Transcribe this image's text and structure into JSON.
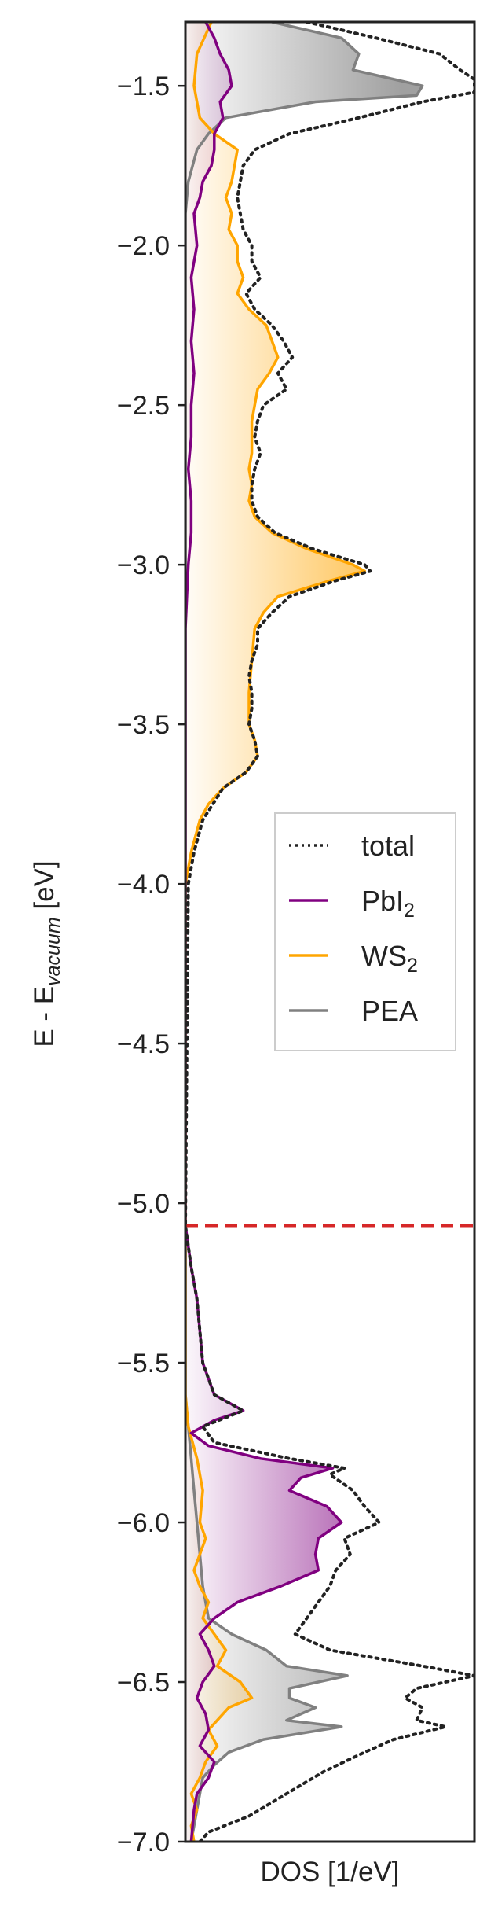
{
  "chart_data": {
    "type": "line",
    "orientation": "horizontal-density",
    "xlabel": "DOS [1/eV]",
    "ylabel_parts": {
      "base": "E - E",
      "sub": "vacuum",
      "unit": " [eV]"
    },
    "ylim": [
      -7.0,
      -1.3
    ],
    "y_ticks": [
      -7.0,
      -6.5,
      -6.0,
      -5.5,
      -5.0,
      -4.5,
      -4.0,
      -3.5,
      -3.0,
      -2.5,
      -2.0,
      -1.5
    ],
    "y_tick_labels": [
      "−7.0",
      "−6.5",
      "−6.0",
      "−5.5",
      "−5.0",
      "−4.5",
      "−4.0",
      "−3.5",
      "−3.0",
      "−2.5",
      "−2.0",
      "−1.5"
    ],
    "xlim": [
      0,
      1
    ],
    "x_ticks_visible": false,
    "grid": false,
    "legend_position": "center-right",
    "fermi_level": {
      "energy": -5.07,
      "color": "#d62728",
      "style": "dashed"
    },
    "series": [
      {
        "key": "total",
        "name": "total",
        "color": "#222222",
        "style": "dotted",
        "fill": false,
        "points": [
          [
            -1.3,
            0.42
          ],
          [
            -1.35,
            0.66
          ],
          [
            -1.4,
            0.88
          ],
          [
            -1.45,
            0.95
          ],
          [
            -1.48,
            1.0
          ],
          [
            -1.5,
            1.0
          ],
          [
            -1.52,
            1.0
          ],
          [
            -1.55,
            0.82
          ],
          [
            -1.6,
            0.6
          ],
          [
            -1.65,
            0.36
          ],
          [
            -1.7,
            0.24
          ],
          [
            -1.75,
            0.2
          ],
          [
            -1.8,
            0.19
          ],
          [
            -1.85,
            0.18
          ],
          [
            -1.9,
            0.19
          ],
          [
            -1.95,
            0.2
          ],
          [
            -2.0,
            0.23
          ],
          [
            -2.05,
            0.23
          ],
          [
            -2.1,
            0.26
          ],
          [
            -2.15,
            0.21
          ],
          [
            -2.2,
            0.24
          ],
          [
            -2.25,
            0.3
          ],
          [
            -2.3,
            0.34
          ],
          [
            -2.35,
            0.37
          ],
          [
            -2.4,
            0.32
          ],
          [
            -2.45,
            0.35
          ],
          [
            -2.5,
            0.27
          ],
          [
            -2.55,
            0.25
          ],
          [
            -2.6,
            0.24
          ],
          [
            -2.65,
            0.26
          ],
          [
            -2.7,
            0.24
          ],
          [
            -2.75,
            0.23
          ],
          [
            -2.8,
            0.23
          ],
          [
            -2.85,
            0.25
          ],
          [
            -2.9,
            0.31
          ],
          [
            -2.95,
            0.44
          ],
          [
            -3.0,
            0.62
          ],
          [
            -3.02,
            0.64
          ],
          [
            -3.05,
            0.52
          ],
          [
            -3.1,
            0.36
          ],
          [
            -3.15,
            0.3
          ],
          [
            -3.2,
            0.25
          ],
          [
            -3.25,
            0.25
          ],
          [
            -3.3,
            0.23
          ],
          [
            -3.35,
            0.22
          ],
          [
            -3.4,
            0.23
          ],
          [
            -3.45,
            0.23
          ],
          [
            -3.5,
            0.22
          ],
          [
            -3.55,
            0.24
          ],
          [
            -3.6,
            0.25
          ],
          [
            -3.65,
            0.21
          ],
          [
            -3.7,
            0.13
          ],
          [
            -3.8,
            0.06
          ],
          [
            -3.9,
            0.03
          ],
          [
            -4.0,
            0.01
          ],
          [
            -5.07,
            0.0
          ],
          [
            -5.2,
            0.02
          ],
          [
            -5.3,
            0.04
          ],
          [
            -5.4,
            0.05
          ],
          [
            -5.5,
            0.06
          ],
          [
            -5.6,
            0.1
          ],
          [
            -5.65,
            0.2
          ],
          [
            -5.7,
            0.06
          ],
          [
            -5.75,
            0.1
          ],
          [
            -5.8,
            0.36
          ],
          [
            -5.83,
            0.55
          ],
          [
            -5.85,
            0.5
          ],
          [
            -5.9,
            0.58
          ],
          [
            -5.95,
            0.62
          ],
          [
            -6.0,
            0.67
          ],
          [
            -6.05,
            0.55
          ],
          [
            -6.1,
            0.57
          ],
          [
            -6.15,
            0.52
          ],
          [
            -6.2,
            0.5
          ],
          [
            -6.25,
            0.46
          ],
          [
            -6.3,
            0.42
          ],
          [
            -6.35,
            0.38
          ],
          [
            -6.4,
            0.5
          ],
          [
            -6.45,
            0.82
          ],
          [
            -6.48,
            1.0
          ],
          [
            -6.52,
            0.8
          ],
          [
            -6.55,
            0.76
          ],
          [
            -6.58,
            0.82
          ],
          [
            -6.62,
            0.8
          ],
          [
            -6.64,
            0.9
          ],
          [
            -6.68,
            0.72
          ],
          [
            -6.72,
            0.62
          ],
          [
            -6.78,
            0.48
          ],
          [
            -6.85,
            0.35
          ],
          [
            -6.92,
            0.22
          ],
          [
            -6.97,
            0.08
          ],
          [
            -7.0,
            0.05
          ]
        ]
      },
      {
        "key": "pbi2",
        "name_base": "PbI",
        "name_sub": "2",
        "color": "#800080",
        "fill": true,
        "points": [
          [
            -1.3,
            0.07
          ],
          [
            -1.35,
            0.1
          ],
          [
            -1.4,
            0.12
          ],
          [
            -1.45,
            0.15
          ],
          [
            -1.5,
            0.16
          ],
          [
            -1.55,
            0.12
          ],
          [
            -1.6,
            0.13
          ],
          [
            -1.65,
            0.1
          ],
          [
            -1.7,
            0.1
          ],
          [
            -1.75,
            0.09
          ],
          [
            -1.8,
            0.06
          ],
          [
            -1.85,
            0.05
          ],
          [
            -1.9,
            0.03
          ],
          [
            -2.0,
            0.04
          ],
          [
            -2.1,
            0.02
          ],
          [
            -2.2,
            0.03
          ],
          [
            -2.3,
            0.02
          ],
          [
            -2.4,
            0.03
          ],
          [
            -2.5,
            0.02
          ],
          [
            -2.6,
            0.02
          ],
          [
            -2.7,
            0.01
          ],
          [
            -2.8,
            0.02
          ],
          [
            -2.9,
            0.02
          ],
          [
            -3.0,
            0.01
          ],
          [
            -3.2,
            0.0
          ],
          [
            -5.07,
            0.0
          ],
          [
            -5.2,
            0.02
          ],
          [
            -5.3,
            0.04
          ],
          [
            -5.4,
            0.05
          ],
          [
            -5.5,
            0.06
          ],
          [
            -5.6,
            0.1
          ],
          [
            -5.65,
            0.2
          ],
          [
            -5.68,
            0.1
          ],
          [
            -5.72,
            0.02
          ],
          [
            -5.76,
            0.08
          ],
          [
            -5.8,
            0.26
          ],
          [
            -5.83,
            0.51
          ],
          [
            -5.86,
            0.4
          ],
          [
            -5.9,
            0.36
          ],
          [
            -5.95,
            0.49
          ],
          [
            -6.0,
            0.54
          ],
          [
            -6.05,
            0.46
          ],
          [
            -6.1,
            0.45
          ],
          [
            -6.15,
            0.46
          ],
          [
            -6.2,
            0.33
          ],
          [
            -6.25,
            0.18
          ],
          [
            -6.3,
            0.1
          ],
          [
            -6.35,
            0.05
          ],
          [
            -6.4,
            0.08
          ],
          [
            -6.45,
            0.1
          ],
          [
            -6.5,
            0.06
          ],
          [
            -6.55,
            0.04
          ],
          [
            -6.6,
            0.07
          ],
          [
            -6.65,
            0.08
          ],
          [
            -6.7,
            0.05
          ],
          [
            -6.75,
            0.1
          ],
          [
            -6.8,
            0.08
          ],
          [
            -6.85,
            0.04
          ],
          [
            -6.9,
            0.03
          ],
          [
            -7.0,
            0.02
          ]
        ]
      },
      {
        "key": "ws2",
        "name_base": "WS",
        "name_sub": "2",
        "color": "#ffa500",
        "fill": true,
        "points": [
          [
            -1.3,
            0.09
          ],
          [
            -1.4,
            0.04
          ],
          [
            -1.5,
            0.03
          ],
          [
            -1.6,
            0.05
          ],
          [
            -1.65,
            0.1
          ],
          [
            -1.7,
            0.18
          ],
          [
            -1.75,
            0.17
          ],
          [
            -1.8,
            0.16
          ],
          [
            -1.85,
            0.14
          ],
          [
            -1.9,
            0.16
          ],
          [
            -1.95,
            0.15
          ],
          [
            -2.0,
            0.18
          ],
          [
            -2.05,
            0.18
          ],
          [
            -2.1,
            0.2
          ],
          [
            -2.15,
            0.18
          ],
          [
            -2.2,
            0.22
          ],
          [
            -2.25,
            0.28
          ],
          [
            -2.3,
            0.3
          ],
          [
            -2.35,
            0.32
          ],
          [
            -2.4,
            0.29
          ],
          [
            -2.45,
            0.25
          ],
          [
            -2.5,
            0.24
          ],
          [
            -2.55,
            0.23
          ],
          [
            -2.6,
            0.23
          ],
          [
            -2.65,
            0.23
          ],
          [
            -2.7,
            0.22
          ],
          [
            -2.75,
            0.23
          ],
          [
            -2.8,
            0.22
          ],
          [
            -2.85,
            0.24
          ],
          [
            -2.9,
            0.3
          ],
          [
            -2.95,
            0.42
          ],
          [
            -3.0,
            0.58
          ],
          [
            -3.02,
            0.62
          ],
          [
            -3.05,
            0.5
          ],
          [
            -3.1,
            0.32
          ],
          [
            -3.15,
            0.27
          ],
          [
            -3.2,
            0.24
          ],
          [
            -3.3,
            0.23
          ],
          [
            -3.4,
            0.22
          ],
          [
            -3.5,
            0.22
          ],
          [
            -3.55,
            0.24
          ],
          [
            -3.6,
            0.25
          ],
          [
            -3.65,
            0.21
          ],
          [
            -3.7,
            0.13
          ],
          [
            -3.75,
            0.08
          ],
          [
            -3.8,
            0.05
          ],
          [
            -3.9,
            0.02
          ],
          [
            -4.0,
            0.0
          ],
          [
            -5.6,
            0.0
          ],
          [
            -5.7,
            0.01
          ],
          [
            -5.8,
            0.04
          ],
          [
            -5.9,
            0.06
          ],
          [
            -6.0,
            0.05
          ],
          [
            -6.05,
            0.07
          ],
          [
            -6.1,
            0.05
          ],
          [
            -6.15,
            0.03
          ],
          [
            -6.2,
            0.05
          ],
          [
            -6.25,
            0.08
          ],
          [
            -6.3,
            0.06
          ],
          [
            -6.35,
            0.1
          ],
          [
            -6.4,
            0.14
          ],
          [
            -6.45,
            0.11
          ],
          [
            -6.5,
            0.19
          ],
          [
            -6.55,
            0.23
          ],
          [
            -6.58,
            0.15
          ],
          [
            -6.62,
            0.11
          ],
          [
            -6.65,
            0.08
          ],
          [
            -6.7,
            0.11
          ],
          [
            -6.75,
            0.07
          ],
          [
            -6.8,
            0.05
          ],
          [
            -6.85,
            0.02
          ],
          [
            -6.9,
            0.04
          ],
          [
            -6.95,
            0.02
          ],
          [
            -7.0,
            0.03
          ]
        ]
      },
      {
        "key": "pea",
        "name": "PEA",
        "color": "#808080",
        "fill": true,
        "points": [
          [
            -1.3,
            0.3
          ],
          [
            -1.35,
            0.54
          ],
          [
            -1.4,
            0.6
          ],
          [
            -1.45,
            0.58
          ],
          [
            -1.5,
            0.82
          ],
          [
            -1.53,
            0.8
          ],
          [
            -1.55,
            0.45
          ],
          [
            -1.6,
            0.14
          ],
          [
            -1.65,
            0.08
          ],
          [
            -1.7,
            0.04
          ],
          [
            -1.8,
            0.01
          ],
          [
            -1.9,
            0.0
          ],
          [
            -5.6,
            0.0
          ],
          [
            -5.7,
            0.01
          ],
          [
            -5.8,
            0.02
          ],
          [
            -5.9,
            0.03
          ],
          [
            -6.0,
            0.04
          ],
          [
            -6.1,
            0.05
          ],
          [
            -6.2,
            0.06
          ],
          [
            -6.3,
            0.08
          ],
          [
            -6.35,
            0.16
          ],
          [
            -6.4,
            0.28
          ],
          [
            -6.45,
            0.35
          ],
          [
            -6.48,
            0.56
          ],
          [
            -6.52,
            0.36
          ],
          [
            -6.55,
            0.36
          ],
          [
            -6.58,
            0.45
          ],
          [
            -6.62,
            0.35
          ],
          [
            -6.64,
            0.54
          ],
          [
            -6.68,
            0.27
          ],
          [
            -6.72,
            0.15
          ],
          [
            -6.76,
            0.1
          ],
          [
            -6.8,
            0.06
          ],
          [
            -6.9,
            0.04
          ],
          [
            -7.0,
            0.02
          ]
        ]
      }
    ],
    "legend_order": [
      "total",
      "pbi2",
      "ws2",
      "pea"
    ]
  }
}
